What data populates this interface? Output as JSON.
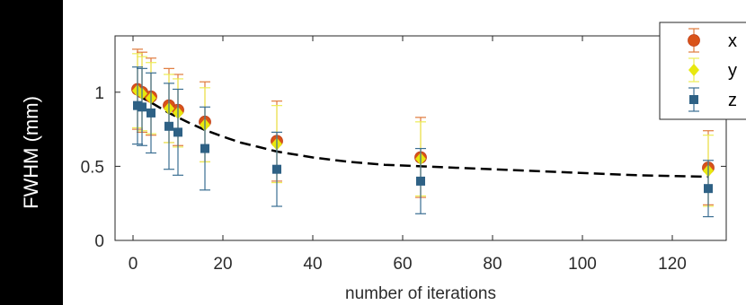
{
  "chart_data": {
    "type": "scatter",
    "xlabel": "number of iterations",
    "ylabel": "FWHM (mm)",
    "xlim": [
      -4,
      132
    ],
    "ylim": [
      0,
      1.38
    ],
    "xticks": [
      0,
      20,
      40,
      60,
      80,
      100,
      120
    ],
    "yticks": [
      0,
      0.5,
      1
    ],
    "ytick_labels": [
      "0",
      "0.5",
      "1"
    ],
    "legend_position": "top-right",
    "series": [
      {
        "name": "x",
        "marker": "circle",
        "color": "#d95319",
        "x": [
          1,
          2,
          4,
          8,
          10,
          16,
          32,
          64,
          128
        ],
        "y": [
          1.02,
          1.0,
          0.97,
          0.91,
          0.88,
          0.8,
          0.67,
          0.56,
          0.49
        ],
        "err": [
          0.27,
          0.27,
          0.26,
          0.25,
          0.24,
          0.27,
          0.27,
          0.27,
          0.25
        ]
      },
      {
        "name": "y",
        "marker": "diamond",
        "color": "#e8e80f",
        "x": [
          1,
          2,
          4,
          8,
          10,
          16,
          32,
          64,
          128
        ],
        "y": [
          1.01,
          0.99,
          0.96,
          0.89,
          0.86,
          0.78,
          0.65,
          0.55,
          0.47
        ],
        "err": [
          0.25,
          0.25,
          0.24,
          0.23,
          0.23,
          0.25,
          0.26,
          0.25,
          0.24
        ]
      },
      {
        "name": "z",
        "marker": "square",
        "color": "#2e6185",
        "x": [
          1,
          2,
          4,
          8,
          10,
          16,
          32,
          64,
          128
        ],
        "y": [
          0.91,
          0.9,
          0.86,
          0.77,
          0.73,
          0.62,
          0.48,
          0.4,
          0.35
        ],
        "err": [
          0.26,
          0.26,
          0.27,
          0.29,
          0.29,
          0.28,
          0.25,
          0.22,
          0.19
        ]
      }
    ],
    "fit_curve": {
      "style": "dashed",
      "color": "#000000",
      "x": [
        1,
        4,
        8,
        12,
        16,
        20,
        24,
        28,
        32,
        40,
        48,
        56,
        64,
        80,
        96,
        112,
        128
      ],
      "y": [
        0.98,
        0.93,
        0.86,
        0.8,
        0.745,
        0.7,
        0.66,
        0.63,
        0.6,
        0.56,
        0.53,
        0.51,
        0.5,
        0.48,
        0.46,
        0.44,
        0.43
      ]
    }
  }
}
